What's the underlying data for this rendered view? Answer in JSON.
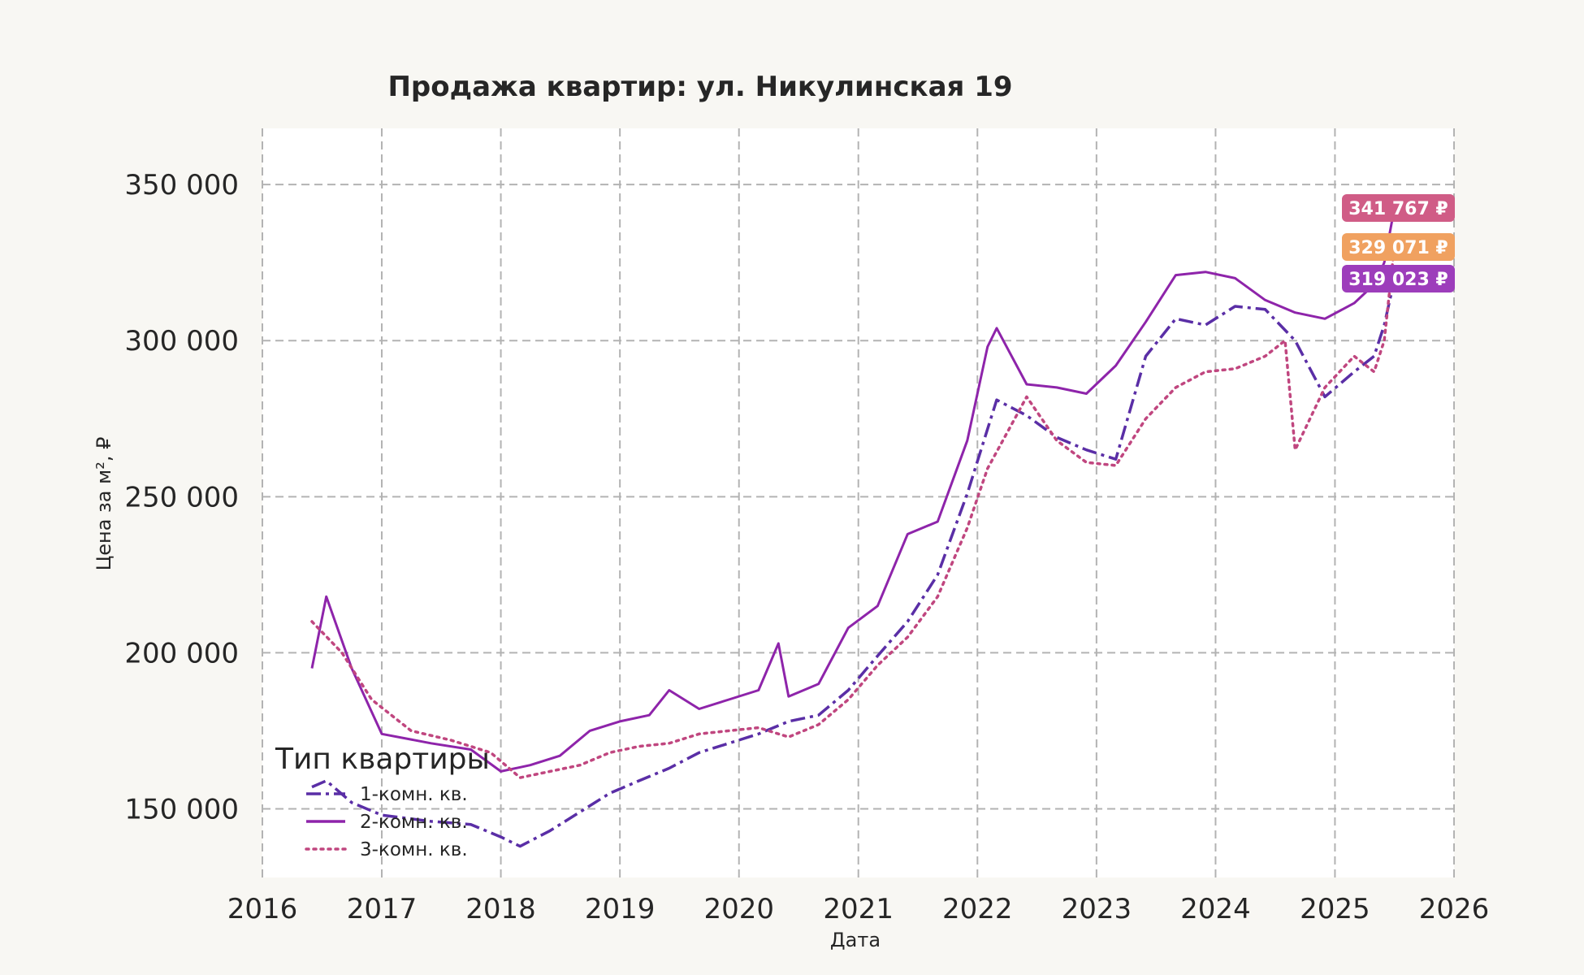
{
  "chart_data": {
    "type": "line",
    "title": "Продажа квартир: ул. Никулинская 19",
    "xlabel": "Дата",
    "ylabel": "Цена за м², ₽",
    "xlim": [
      "2016-01-01",
      "2026-01-01"
    ],
    "ylim": [
      128000,
      368000
    ],
    "x_ticks": [
      "2016",
      "2017",
      "2018",
      "2019",
      "2020",
      "2021",
      "2022",
      "2023",
      "2024",
      "2025",
      "2026"
    ],
    "y_ticks": [
      150000,
      200000,
      250000,
      300000,
      350000
    ],
    "y_tick_labels": [
      "150 000",
      "200 000",
      "250 000",
      "300 000",
      "350 000"
    ],
    "grid": true,
    "legend": {
      "title": "Тип квартиры",
      "position": "lower-left"
    },
    "series": [
      {
        "name": "1-комн. кв.",
        "color": "#5a2ea6",
        "style": "dashdot",
        "x": [
          "2016-06-01",
          "2016-07-15",
          "2016-10-01",
          "2017-01-01",
          "2017-06-01",
          "2017-10-01",
          "2018-01-01",
          "2018-03-01",
          "2018-06-01",
          "2018-09-01",
          "2018-12-01",
          "2019-03-01",
          "2019-06-01",
          "2019-09-01",
          "2019-12-01",
          "2020-03-01",
          "2020-06-01",
          "2020-09-01",
          "2020-12-01",
          "2021-03-01",
          "2021-06-01",
          "2021-09-01",
          "2021-12-01",
          "2022-03-01",
          "2022-06-01",
          "2022-09-01",
          "2022-12-01",
          "2023-03-01",
          "2023-06-01",
          "2023-09-01",
          "2023-12-01",
          "2024-03-01",
          "2024-06-01",
          "2024-09-01",
          "2024-12-01",
          "2025-03-01",
          "2025-05-01",
          "2025-06-01",
          "2025-07-01"
        ],
        "values": [
          157000,
          159000,
          152000,
          148000,
          146000,
          145000,
          141000,
          138000,
          143000,
          149000,
          155000,
          159000,
          163000,
          168000,
          171000,
          174000,
          178000,
          180000,
          188000,
          199000,
          210000,
          225000,
          251000,
          281000,
          276000,
          269000,
          265000,
          262000,
          295000,
          307000,
          305000,
          311000,
          310000,
          300000,
          282000,
          290000,
          295000,
          305000,
          319023
        ]
      },
      {
        "name": "2-комн. кв.",
        "color": "#8e24aa",
        "style": "solid",
        "x": [
          "2016-06-01",
          "2016-07-15",
          "2016-10-01",
          "2017-01-01",
          "2017-06-01",
          "2017-10-01",
          "2018-01-01",
          "2018-04-01",
          "2018-07-01",
          "2018-10-01",
          "2019-01-01",
          "2019-04-01",
          "2019-06-01",
          "2019-09-01",
          "2019-12-01",
          "2020-03-01",
          "2020-05-01",
          "2020-06-01",
          "2020-09-01",
          "2020-12-01",
          "2021-03-01",
          "2021-06-01",
          "2021-09-01",
          "2021-12-01",
          "2022-02-01",
          "2022-03-01",
          "2022-06-01",
          "2022-09-01",
          "2022-12-01",
          "2023-03-01",
          "2023-06-01",
          "2023-09-01",
          "2023-12-01",
          "2024-03-01",
          "2024-06-01",
          "2024-09-01",
          "2024-12-01",
          "2025-03-01",
          "2025-05-01",
          "2025-06-01",
          "2025-07-01"
        ],
        "values": [
          195000,
          218000,
          195000,
          174000,
          171000,
          169000,
          162000,
          164000,
          167000,
          175000,
          178000,
          180000,
          188000,
          182000,
          185000,
          188000,
          203000,
          186000,
          190000,
          208000,
          215000,
          238000,
          242000,
          268000,
          298000,
          304000,
          286000,
          285000,
          283000,
          292000,
          306000,
          321000,
          322000,
          320000,
          313000,
          309000,
          307000,
          312000,
          318000,
          325000,
          341767
        ]
      },
      {
        "name": "3-комн. кв.",
        "color": "#c0467f",
        "style": "dotted",
        "x": [
          "2016-06-01",
          "2016-09-01",
          "2016-12-01",
          "2017-04-01",
          "2017-08-01",
          "2017-12-01",
          "2018-03-01",
          "2018-06-01",
          "2018-09-01",
          "2018-12-01",
          "2019-03-01",
          "2019-06-01",
          "2019-09-01",
          "2019-12-01",
          "2020-03-01",
          "2020-06-01",
          "2020-09-01",
          "2020-12-01",
          "2021-03-01",
          "2021-06-01",
          "2021-09-01",
          "2021-12-01",
          "2022-02-01",
          "2022-06-01",
          "2022-09-01",
          "2022-12-01",
          "2023-03-01",
          "2023-06-01",
          "2023-09-01",
          "2023-12-01",
          "2024-03-01",
          "2024-06-01",
          "2024-08-01",
          "2024-09-01",
          "2024-12-01",
          "2025-03-01",
          "2025-05-01",
          "2025-06-01",
          "2025-07-01"
        ],
        "values": [
          210000,
          200000,
          185000,
          175000,
          172000,
          168000,
          160000,
          162000,
          164000,
          168000,
          170000,
          171000,
          174000,
          175000,
          176000,
          173000,
          177000,
          185000,
          196000,
          205000,
          218000,
          240000,
          259000,
          282000,
          268000,
          261000,
          260000,
          275000,
          285000,
          290000,
          291000,
          295000,
          300000,
          265000,
          285000,
          295000,
          290000,
          300000,
          329071
        ]
      }
    ],
    "annotations": [
      {
        "label": "341 767 ₽",
        "color": "#d05c86",
        "series": "2-комн. кв."
      },
      {
        "label": "329 071 ₽",
        "color": "#f0a160",
        "series": "3-комн. кв."
      },
      {
        "label": "319 023 ₽",
        "color": "#9d3dbb",
        "series": "1-комн. кв."
      }
    ]
  }
}
